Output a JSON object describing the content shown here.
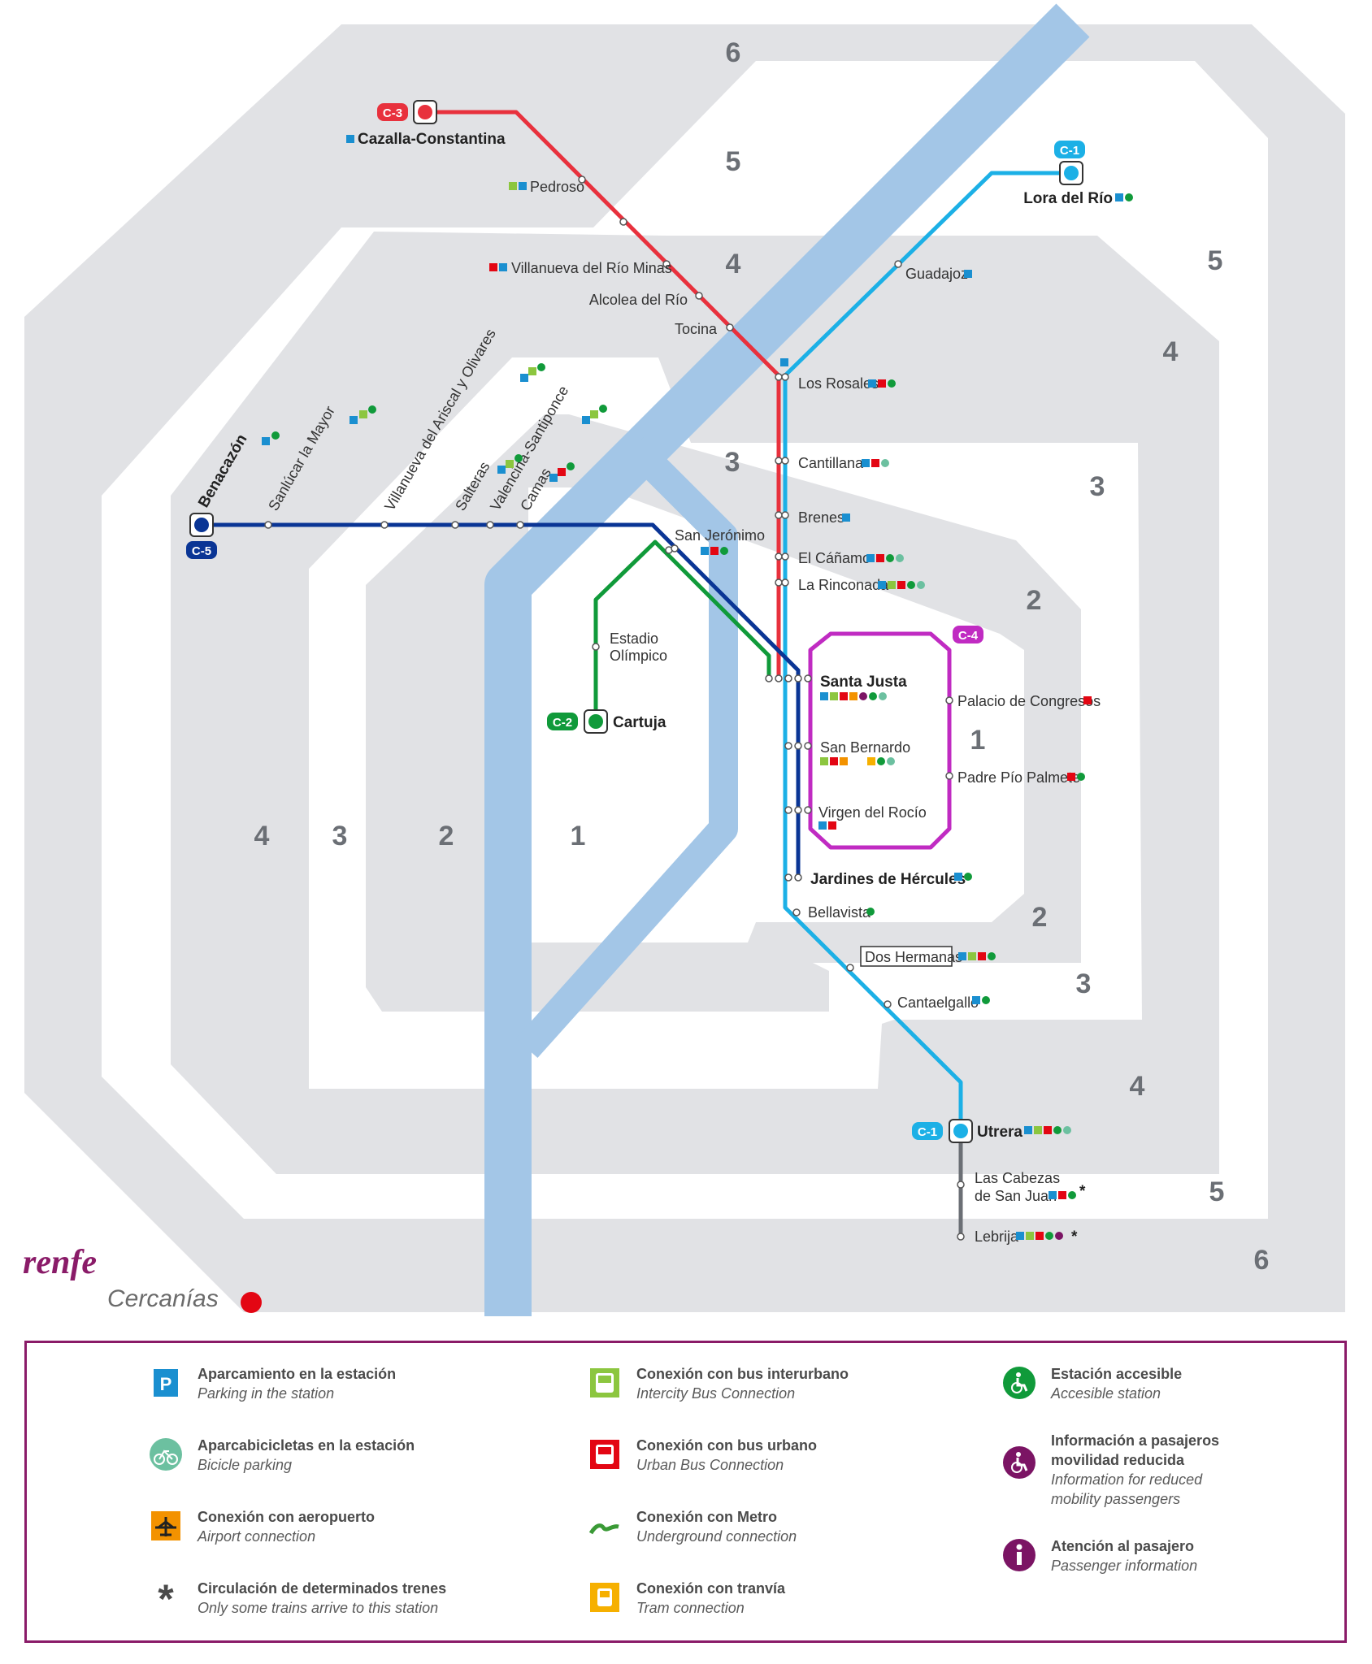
{
  "zones": {
    "top": [
      "6",
      "5",
      "4"
    ],
    "right_top": [
      "5",
      "4",
      "3",
      "2"
    ],
    "center_right": "1",
    "right_bottom": [
      "2",
      "3",
      "4",
      "5",
      "6"
    ],
    "left": [
      "4",
      "3",
      "2",
      "1"
    ],
    "inner_left": "3"
  },
  "lines": {
    "c1": {
      "badge": "C-1",
      "color": "#1cb0e6"
    },
    "c2": {
      "badge": "C-2",
      "color": "#109a3a"
    },
    "c3": {
      "badge": "C-3",
      "color": "#e8313d"
    },
    "c4": {
      "badge": "C-4",
      "color": "#c02bc2"
    },
    "c5": {
      "badge": "C-5",
      "color": "#0a3595"
    }
  },
  "stations": {
    "cazalla": "Cazalla-Constantina",
    "pedroso": "Pedroso",
    "villanueva_minas": "Villanueva del Río Minas",
    "alcolea": "Alcolea del Río",
    "tocina": "Tocina",
    "lora": "Lora del Río",
    "guadajoz": "Guadajoz",
    "los_rosales": "Los Rosales",
    "cantillana": "Cantillana",
    "brenes": "Brenes",
    "el_canamo": "El Cáñamo",
    "la_rinconada": "La Rinconada",
    "benacazon": "Benacazón",
    "sanlucar": "Sanlúcar la Mayor",
    "villanueva_ariscal": "Villanueva del Ariscal y Olivares",
    "salteras": "Salteras",
    "valencina": "Valencina-Santiponce",
    "camas": "Camas",
    "san_jeronimo": "San Jerónimo",
    "estadio_1": "Estadio",
    "estadio_2": "Olímpico",
    "cartuja": "Cartuja",
    "santa_justa": "Santa Justa",
    "san_bernardo": "San Bernardo",
    "virgen_rocio": "Virgen del Rocío",
    "jardines": "Jardines de Hércules",
    "bellavista": "Bellavista",
    "palacio": "Palacio de Congresos",
    "padre_pio": "Padre Pío Palmete",
    "dos_hermanas": "Dos Hermanas",
    "cantaelgallo": "Cantaelgallo",
    "utrera": "Utrera",
    "cabezas_1": "Las Cabezas",
    "cabezas_2": "de San Juan",
    "lebrija": "Lebrija",
    "asterisk": "*"
  },
  "brand": {
    "name": "renfe",
    "sub": "Cercanías"
  },
  "legend": [
    {
      "es": "Aparcamiento en la estación",
      "en": "Parking in the station",
      "icon": "parking-icon",
      "color": "#1a8fd0"
    },
    {
      "es": "Conexión con bus interurbano",
      "en": "Intercity Bus Connection",
      "icon": "intercity-bus-icon",
      "color": "#8cc63f"
    },
    {
      "es": "Estación accesible",
      "en": "Accesible station",
      "icon": "accessible-icon",
      "color": "#109a3a"
    },
    {
      "es": "Aparcabicicletas en la estación",
      "en": "Bicicle parking",
      "icon": "bicycle-icon",
      "color": "#6cc0a0"
    },
    {
      "es": "Conexión con bus urbano",
      "en": "Urban Bus Connection",
      "icon": "urban-bus-icon",
      "color": "#e30613"
    },
    {
      "es": "Información a pasajeros",
      "es2": "movilidad reducida",
      "en": "Information for reduced",
      "en2": "mobility passengers",
      "icon": "reduced-mobility-icon",
      "color": "#7b1464"
    },
    {
      "es": "Conexión con aeropuerto",
      "en": "Airport connection",
      "icon": "airport-icon",
      "color": "#f39200"
    },
    {
      "es": "Conexión con Metro",
      "en": "Underground connection",
      "icon": "metro-icon",
      "color": "#3a9a36"
    },
    {
      "es": "Atención al pasajero",
      "en": "Passenger information",
      "icon": "info-icon",
      "color": "#7b1464"
    },
    {
      "es": "Circulación de determinados trenes",
      "en": "Only some trains arrive to this station",
      "icon": "asterisk-icon",
      "color": "#4a4a4a"
    },
    {
      "es": "Conexión con tranvía",
      "en": "Tram connection",
      "icon": "tram-icon",
      "color": "#f6b000"
    }
  ]
}
